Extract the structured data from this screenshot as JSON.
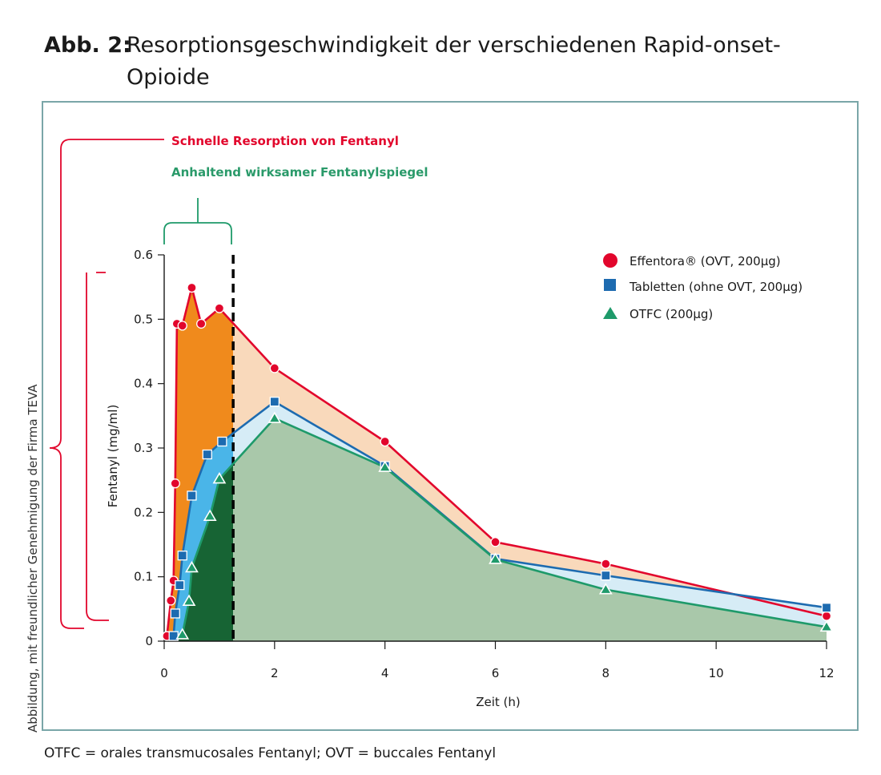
{
  "figure": {
    "label": "Abb. 2:",
    "title_line1": "Resorptionsgeschwindigkeit der verschiedenen Rapid-onset-",
    "title_line2": "Opioide",
    "footnote": "OTFC = orales transmucosales Fentanyl; OVT = buccales Fentanyl",
    "credit": "Abbildung, mit freundlicher Genehmigung der Firma TEVA"
  },
  "colors": {
    "red": "#e2062c",
    "blue": "#1d6bb0",
    "green": "#1e9a6a",
    "teal_text": "#2a9a6a",
    "orange_fill": "#f08a1c",
    "light_orange_fill": "#f9d9bb",
    "blue_fill": "#4ab5e8",
    "light_blue_fill": "#d6ecf6",
    "dark_green_fill": "#176434",
    "light_green_fill": "#a9c8aa"
  },
  "chart_data": {
    "type": "area",
    "xlabel": "Zeit (h)",
    "ylabel": "Fentanyl (mg/ml)",
    "xlim": [
      0,
      12
    ],
    "ylim": [
      0,
      0.6
    ],
    "xticks": [
      0,
      2,
      4,
      6,
      8,
      10,
      12
    ],
    "xtick_labels": [
      "0",
      "2",
      "4",
      "6",
      "8",
      "10",
      "12"
    ],
    "yticks": [
      0,
      0.1,
      0.2,
      0.3,
      0.4,
      0.5,
      0.6
    ],
    "ytick_labels": [
      "0",
      "0.1",
      "0.2",
      "0.3",
      "0.4",
      "0.5",
      "0.6"
    ],
    "cutoff_x": 1.25,
    "annotations": {
      "fast": "Schnelle Resorption von Fentanyl",
      "sustained": "Anhaltend wirksamer Fentanylspiegel"
    },
    "series": [
      {
        "name": "Effentora® (OVT, 200µg)",
        "marker": "circle",
        "x": [
          0.05,
          0.12,
          0.17,
          0.2,
          0.23,
          0.33,
          0.5,
          0.67,
          1.0,
          2.0,
          4.0,
          6.0,
          8.0,
          12.0
        ],
        "y": [
          0.008,
          0.063,
          0.094,
          0.245,
          0.493,
          0.49,
          0.549,
          0.493,
          0.517,
          0.424,
          0.31,
          0.154,
          0.12,
          0.039
        ]
      },
      {
        "name": "Tabletten (ohne OVT, 200µg)",
        "marker": "square",
        "x": [
          0.17,
          0.2,
          0.28,
          0.33,
          0.5,
          0.78,
          1.05,
          2.0,
          4.0,
          6.0,
          8.0,
          12.0
        ],
        "y": [
          0.008,
          0.043,
          0.087,
          0.133,
          0.226,
          0.29,
          0.31,
          0.372,
          0.272,
          0.128,
          0.102,
          0.052
        ]
      },
      {
        "name": "OTFC (200µg)",
        "marker": "triangle",
        "x": [
          0.33,
          0.45,
          0.5,
          0.83,
          1.0,
          2.0,
          4.0,
          6.0,
          8.0,
          12.0
        ],
        "y": [
          0.01,
          0.062,
          0.114,
          0.194,
          0.252,
          0.346,
          0.27,
          0.127,
          0.08,
          0.022
        ]
      }
    ]
  }
}
